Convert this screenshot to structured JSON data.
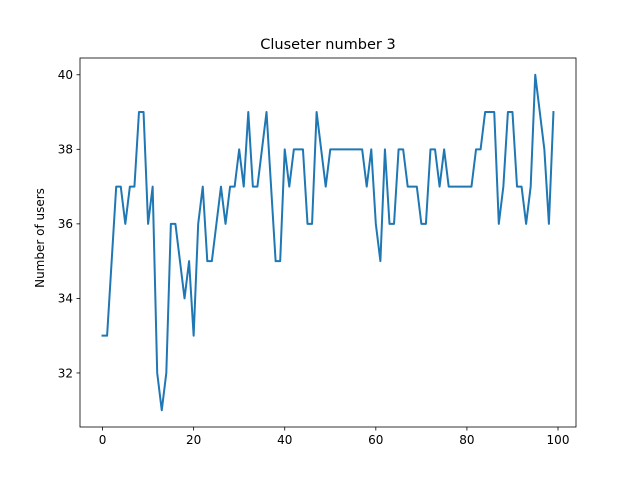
{
  "chart_data": {
    "type": "line",
    "title": "Cluseter number 3",
    "xlabel": "",
    "ylabel": "Number of users",
    "xlim": [
      -4.95,
      103.95
    ],
    "ylim": [
      30.55,
      40.45
    ],
    "xticks": [
      0,
      20,
      40,
      60,
      80,
      100
    ],
    "yticks": [
      32,
      34,
      36,
      38,
      40
    ],
    "grid": false,
    "line_color": "#1f77b4",
    "series": [
      {
        "values": [
          33,
          33,
          35,
          37,
          37,
          36,
          37,
          37,
          39,
          39,
          36,
          37,
          32,
          31,
          32,
          36,
          36,
          35,
          34,
          35,
          33,
          36,
          37,
          35,
          35,
          36,
          37,
          36,
          37,
          37,
          38,
          37,
          39,
          37,
          37,
          38,
          39,
          37,
          35,
          35,
          38,
          37,
          38,
          38,
          38,
          36,
          36,
          39,
          38,
          37,
          38,
          38,
          38,
          38,
          38,
          38,
          38,
          38,
          37,
          38,
          36,
          35,
          38,
          36,
          36,
          38,
          38,
          37,
          37,
          37,
          36,
          36,
          38,
          38,
          37,
          38,
          37,
          37,
          37,
          37,
          37,
          37,
          38,
          38,
          39,
          39,
          39,
          36,
          37,
          39,
          39,
          37,
          37,
          36,
          37,
          40,
          39,
          38,
          36,
          39
        ]
      }
    ]
  }
}
